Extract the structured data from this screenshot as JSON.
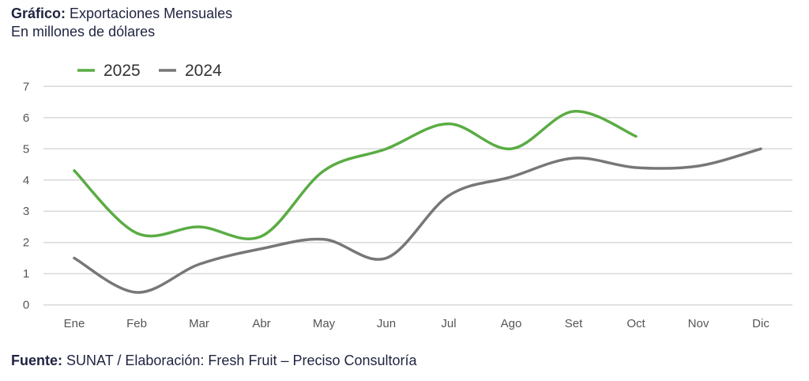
{
  "header": {
    "label": "Gráfico:",
    "title": "Exportaciones Mensuales",
    "subtitle": "En millones de dólares"
  },
  "footer": {
    "label": "Fuente:",
    "text": "SUNAT / Elaboración: Fresh Fruit – Preciso Consultoría"
  },
  "chart_data": {
    "type": "line",
    "title": "Exportaciones Mensuales",
    "subtitle": "En millones de dólares",
    "categories": [
      "Ene",
      "Feb",
      "Mar",
      "Abr",
      "May",
      "Jun",
      "Jul",
      "Ago",
      "Set",
      "Oct",
      "Nov",
      "Dic"
    ],
    "ylim": [
      0,
      7
    ],
    "yticks": [
      "0",
      "1",
      "2",
      "3",
      "4",
      "5",
      "6",
      "7"
    ],
    "grid": true,
    "legend_position": "top-left",
    "series": [
      {
        "name": "2025",
        "color": "#5aac44",
        "values": [
          4.3,
          2.3,
          2.5,
          2.2,
          4.3,
          5.0,
          5.8,
          5.0,
          6.2,
          5.4,
          null,
          null
        ]
      },
      {
        "name": "2024",
        "color": "#777777",
        "values": [
          1.5,
          0.4,
          1.3,
          1.8,
          2.1,
          1.5,
          3.5,
          4.1,
          4.7,
          4.4,
          4.45,
          5.0
        ]
      }
    ]
  }
}
